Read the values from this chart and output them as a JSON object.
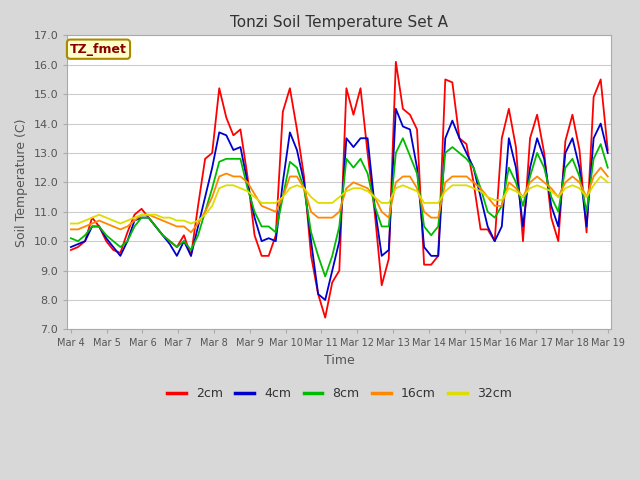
{
  "title": "Tonzi Soil Temperature Set A",
  "xlabel": "Time",
  "ylabel": "Soil Temperature (C)",
  "ylim": [
    7.0,
    17.0
  ],
  "yticks": [
    7.0,
    8.0,
    9.0,
    10.0,
    11.0,
    12.0,
    13.0,
    14.0,
    15.0,
    16.0,
    17.0
  ],
  "xtick_labels": [
    "Mar 4",
    "Mar 5",
    "Mar 6",
    "Mar 7",
    "Mar 8",
    "Mar 9",
    "Mar 10",
    "Mar 11",
    "Mar 12",
    "Mar 13",
    "Mar 14",
    "Mar 15",
    "Mar 16",
    "Mar 17",
    "Mar 18",
    "Mar 19"
  ],
  "colors": {
    "2cm": "#ff0000",
    "4cm": "#0000cc",
    "8cm": "#00bb00",
    "16cm": "#ff8800",
    "32cm": "#dddd00"
  },
  "legend_label": "TZ_fmet",
  "legend_box_facecolor": "#ffffcc",
  "legend_box_edgecolor": "#aa8800",
  "fig_facecolor": "#d8d8d8",
  "plot_facecolor": "#ffffff",
  "grid_color": "#cccccc",
  "series_2cm": [
    9.7,
    9.8,
    10.0,
    10.8,
    10.5,
    10.0,
    9.7,
    9.6,
    10.3,
    10.9,
    11.1,
    10.8,
    10.5,
    10.2,
    10.0,
    9.8,
    10.2,
    9.5,
    11.2,
    12.8,
    13.0,
    15.2,
    14.2,
    13.6,
    13.8,
    12.2,
    10.2,
    9.5,
    9.5,
    10.2,
    14.4,
    15.2,
    13.8,
    12.2,
    9.5,
    8.2,
    7.4,
    8.6,
    9.0,
    15.2,
    14.3,
    15.2,
    13.0,
    11.0,
    8.5,
    9.4,
    16.1,
    14.5,
    14.3,
    13.8,
    9.2,
    9.2,
    9.5,
    15.5,
    15.4,
    13.5,
    13.3,
    12.0,
    10.4,
    10.4,
    10.0,
    13.5,
    14.5,
    13.2,
    10.0,
    13.5,
    14.3,
    13.0,
    10.8,
    10.0,
    13.4,
    14.3,
    13.1,
    10.3,
    14.9,
    15.5,
    13.1
  ],
  "series_4cm": [
    9.8,
    9.9,
    10.0,
    10.5,
    10.5,
    10.1,
    9.8,
    9.5,
    10.0,
    10.7,
    10.8,
    10.8,
    10.5,
    10.2,
    9.9,
    9.5,
    10.0,
    9.5,
    10.5,
    11.5,
    12.5,
    13.7,
    13.6,
    13.1,
    13.2,
    12.0,
    10.8,
    10.0,
    10.1,
    10.0,
    12.0,
    13.7,
    13.1,
    12.0,
    10.0,
    8.2,
    8.0,
    9.0,
    10.0,
    13.5,
    13.2,
    13.5,
    13.5,
    11.2,
    9.5,
    9.7,
    14.5,
    13.9,
    13.8,
    12.5,
    9.8,
    9.5,
    9.5,
    13.5,
    14.1,
    13.5,
    13.0,
    12.5,
    11.5,
    10.5,
    10.0,
    10.5,
    13.5,
    12.5,
    10.5,
    12.5,
    13.5,
    12.8,
    11.2,
    10.5,
    13.0,
    13.5,
    12.5,
    10.5,
    13.5,
    14.0,
    13.0
  ],
  "series_8cm": [
    10.1,
    10.0,
    10.2,
    10.5,
    10.5,
    10.2,
    10.0,
    9.8,
    10.0,
    10.5,
    10.8,
    10.8,
    10.5,
    10.2,
    10.0,
    9.8,
    10.0,
    9.7,
    10.2,
    11.0,
    11.8,
    12.7,
    12.8,
    12.8,
    12.8,
    11.8,
    11.0,
    10.5,
    10.5,
    10.3,
    11.5,
    12.7,
    12.5,
    11.8,
    10.3,
    9.5,
    8.8,
    9.5,
    10.5,
    12.8,
    12.5,
    12.8,
    12.3,
    11.2,
    10.5,
    10.5,
    13.0,
    13.5,
    12.9,
    12.3,
    10.5,
    10.2,
    10.5,
    13.0,
    13.2,
    13.0,
    12.8,
    12.5,
    11.8,
    11.0,
    10.8,
    11.2,
    12.5,
    12.0,
    11.2,
    12.2,
    13.0,
    12.5,
    11.5,
    11.0,
    12.5,
    12.8,
    12.2,
    11.0,
    12.8,
    13.3,
    12.5
  ],
  "series_16cm": [
    10.4,
    10.4,
    10.5,
    10.6,
    10.7,
    10.6,
    10.5,
    10.4,
    10.5,
    10.7,
    10.9,
    10.9,
    10.8,
    10.7,
    10.6,
    10.5,
    10.5,
    10.3,
    10.6,
    11.0,
    11.5,
    12.2,
    12.3,
    12.2,
    12.2,
    12.0,
    11.6,
    11.2,
    11.1,
    11.0,
    11.5,
    12.2,
    12.2,
    11.8,
    11.0,
    10.8,
    10.8,
    10.8,
    11.0,
    11.8,
    12.0,
    11.9,
    11.8,
    11.5,
    11.0,
    10.8,
    12.0,
    12.2,
    12.2,
    11.8,
    11.0,
    10.8,
    10.8,
    12.0,
    12.2,
    12.2,
    12.2,
    12.0,
    11.8,
    11.5,
    11.2,
    11.2,
    12.0,
    11.8,
    11.5,
    12.0,
    12.2,
    12.0,
    11.8,
    11.5,
    12.0,
    12.2,
    12.0,
    11.5,
    12.2,
    12.5,
    12.2
  ],
  "series_32cm": [
    10.6,
    10.6,
    10.7,
    10.8,
    10.9,
    10.8,
    10.7,
    10.6,
    10.7,
    10.8,
    10.9,
    10.9,
    10.9,
    10.8,
    10.8,
    10.7,
    10.7,
    10.6,
    10.7,
    10.9,
    11.2,
    11.8,
    11.9,
    11.9,
    11.8,
    11.7,
    11.5,
    11.3,
    11.3,
    11.3,
    11.5,
    11.8,
    11.9,
    11.8,
    11.5,
    11.3,
    11.3,
    11.3,
    11.5,
    11.7,
    11.8,
    11.8,
    11.7,
    11.5,
    11.3,
    11.3,
    11.8,
    11.9,
    11.8,
    11.7,
    11.3,
    11.3,
    11.3,
    11.7,
    11.9,
    11.9,
    11.9,
    11.8,
    11.7,
    11.5,
    11.4,
    11.4,
    11.8,
    11.7,
    11.5,
    11.8,
    11.9,
    11.8,
    11.7,
    11.5,
    11.8,
    11.9,
    11.8,
    11.5,
    11.9,
    12.2,
    12.0
  ]
}
